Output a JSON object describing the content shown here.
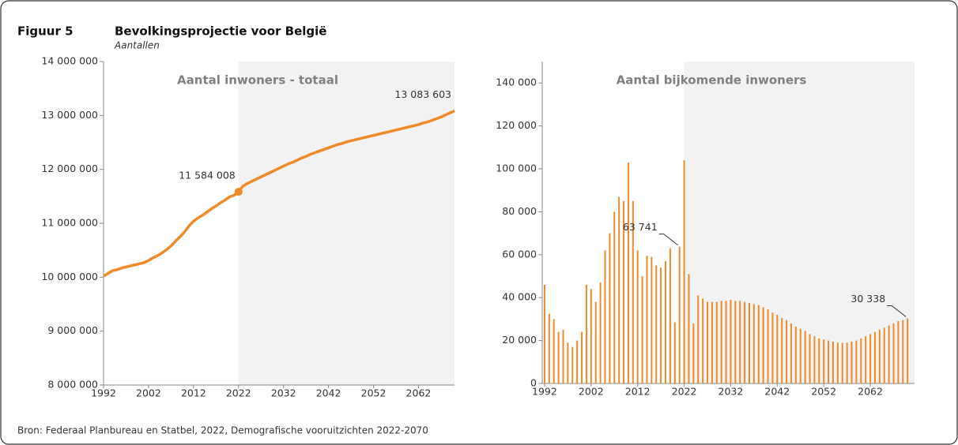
{
  "header": {
    "figure": "Figuur 5",
    "title": "Bevolkingsprojectie voor België",
    "subtitle": "Aantallen"
  },
  "source": "Bron: Federaal Planbureau en Statbel, 2022, Demografische vooruitzichten 2022-2070",
  "chart_data": [
    {
      "type": "line",
      "title": "Aantal inwoners - totaal",
      "color": "#ef8a2a",
      "x": [
        1992,
        1993,
        1994,
        1995,
        1996,
        1997,
        1998,
        1999,
        2000,
        2001,
        2002,
        2003,
        2004,
        2005,
        2006,
        2007,
        2008,
        2009,
        2010,
        2011,
        2012,
        2013,
        2014,
        2015,
        2016,
        2017,
        2018,
        2019,
        2020,
        2021,
        2022,
        2023,
        2024,
        2025,
        2026,
        2027,
        2028,
        2029,
        2030,
        2031,
        2032,
        2033,
        2034,
        2035,
        2036,
        2037,
        2038,
        2039,
        2040,
        2041,
        2042,
        2043,
        2044,
        2045,
        2046,
        2047,
        2048,
        2049,
        2050,
        2051,
        2052,
        2053,
        2054,
        2055,
        2056,
        2057,
        2058,
        2059,
        2060,
        2061,
        2062,
        2063,
        2064,
        2065,
        2066,
        2067,
        2068,
        2069,
        2070
      ],
      "values": [
        10020000,
        10070000,
        10120000,
        10140000,
        10170000,
        10190000,
        10210000,
        10230000,
        10250000,
        10270000,
        10310000,
        10360000,
        10400000,
        10450000,
        10510000,
        10580000,
        10670000,
        10750000,
        10840000,
        10950000,
        11040000,
        11100000,
        11150000,
        11210000,
        11270000,
        11320000,
        11380000,
        11430000,
        11490000,
        11520000,
        11584008,
        11690000,
        11740000,
        11780000,
        11820000,
        11860000,
        11900000,
        11940000,
        11980000,
        12020000,
        12060000,
        12100000,
        12130000,
        12170000,
        12210000,
        12240000,
        12280000,
        12310000,
        12340000,
        12370000,
        12400000,
        12430000,
        12460000,
        12480000,
        12510000,
        12530000,
        12550000,
        12570000,
        12590000,
        12610000,
        12630000,
        12650000,
        12670000,
        12690000,
        12710000,
        12730000,
        12750000,
        12770000,
        12790000,
        12810000,
        12830000,
        12860000,
        12880000,
        12910000,
        12940000,
        12970000,
        13010000,
        13050000,
        13083603
      ],
      "value_labels": [
        null,
        null,
        null,
        null,
        null,
        null,
        null,
        null,
        null,
        null,
        null,
        null,
        null,
        null,
        null,
        null,
        null,
        null,
        null,
        null,
        null,
        null,
        null,
        null,
        null,
        null,
        null,
        null,
        null,
        null,
        "11 584 008",
        null,
        null,
        null,
        null,
        null,
        null,
        null,
        null,
        null,
        null,
        null,
        null,
        null,
        null,
        null,
        null,
        null,
        null,
        null,
        null,
        null,
        null,
        null,
        null,
        null,
        null,
        null,
        null,
        null,
        null,
        null,
        null,
        null,
        null,
        null,
        null,
        null,
        null,
        null,
        null,
        null,
        null,
        null,
        null,
        null,
        null,
        null,
        "13 083 603"
      ],
      "xlim": [
        1992,
        2070
      ],
      "xticks": [
        1992,
        2002,
        2012,
        2022,
        2032,
        2042,
        2052,
        2062
      ],
      "ylim": [
        8000000,
        14000000
      ],
      "yticks": [
        {
          "value": 8000000,
          "label": "8 000 000"
        },
        {
          "value": 9000000,
          "label": "9 000 000"
        },
        {
          "value": 10000000,
          "label": "10 000 000"
        },
        {
          "value": 11000000,
          "label": "11 000 000"
        },
        {
          "value": 12000000,
          "label": "12 000 000"
        },
        {
          "value": 13000000,
          "label": "13 000 000"
        },
        {
          "value": 14000000,
          "label": "14 000 000"
        }
      ],
      "shaded_region": [
        2022,
        2070
      ]
    },
    {
      "type": "bar",
      "title": "Aantal bijkomende inwoners",
      "color": "#ef8a2a",
      "x": [
        1992,
        1993,
        1994,
        1995,
        1996,
        1997,
        1998,
        1999,
        2000,
        2001,
        2002,
        2003,
        2004,
        2005,
        2006,
        2007,
        2008,
        2009,
        2010,
        2011,
        2012,
        2013,
        2014,
        2015,
        2016,
        2017,
        2018,
        2019,
        2020,
        2021,
        2022,
        2023,
        2024,
        2025,
        2026,
        2027,
        2028,
        2029,
        2030,
        2031,
        2032,
        2033,
        2034,
        2035,
        2036,
        2037,
        2038,
        2039,
        2040,
        2041,
        2042,
        2043,
        2044,
        2045,
        2046,
        2047,
        2048,
        2049,
        2050,
        2051,
        2052,
        2053,
        2054,
        2055,
        2056,
        2057,
        2058,
        2059,
        2060,
        2061,
        2062,
        2063,
        2064,
        2065,
        2066,
        2067,
        2068,
        2069,
        2070
      ],
      "values": [
        46000,
        32500,
        30000,
        24000,
        25000,
        19000,
        17000,
        20000,
        24000,
        46000,
        44000,
        38000,
        47000,
        62000,
        70000,
        80000,
        87000,
        85000,
        103000,
        85000,
        62000,
        50000,
        59500,
        59000,
        55000,
        54000,
        57000,
        63000,
        28500,
        63741,
        104000,
        51000,
        28000,
        41000,
        39500,
        38000,
        38000,
        38000,
        38500,
        38500,
        39000,
        38500,
        38500,
        38000,
        37500,
        37000,
        36500,
        35500,
        34500,
        33000,
        32000,
        30500,
        29500,
        28000,
        26500,
        25500,
        24500,
        23000,
        22000,
        21000,
        20500,
        20000,
        19500,
        19000,
        19000,
        19000,
        19500,
        20000,
        21000,
        22000,
        23000,
        24000,
        25000,
        26000,
        27000,
        28000,
        29000,
        29500,
        30338
      ],
      "value_labels": [
        null,
        null,
        null,
        null,
        null,
        null,
        null,
        null,
        null,
        null,
        null,
        null,
        null,
        null,
        null,
        null,
        null,
        null,
        null,
        null,
        null,
        null,
        null,
        null,
        null,
        null,
        null,
        null,
        null,
        "63 741",
        null,
        null,
        null,
        null,
        null,
        null,
        null,
        null,
        null,
        null,
        null,
        null,
        null,
        null,
        null,
        null,
        null,
        null,
        null,
        null,
        null,
        null,
        null,
        null,
        null,
        null,
        null,
        null,
        null,
        null,
        null,
        null,
        null,
        null,
        null,
        null,
        null,
        null,
        null,
        null,
        null,
        null,
        null,
        null,
        null,
        null,
        null,
        null,
        "30 338"
      ],
      "xlim": [
        1991.5,
        2071.5
      ],
      "xticks": [
        1992,
        2002,
        2012,
        2022,
        2032,
        2042,
        2052,
        2062
      ],
      "ylim": [
        0,
        150000
      ],
      "yticks": [
        0,
        {
          "value": 20000,
          "label": "20 000"
        },
        {
          "value": 40000,
          "label": "40 000"
        },
        {
          "value": 60000,
          "label": "60 000"
        },
        {
          "value": 80000,
          "label": "80 000"
        },
        {
          "value": 100000,
          "label": "100 000"
        },
        {
          "value": 120000,
          "label": "120 000"
        },
        {
          "value": 140000,
          "label": "140 000"
        }
      ],
      "shaded_region": [
        2022,
        2071.5
      ]
    }
  ]
}
